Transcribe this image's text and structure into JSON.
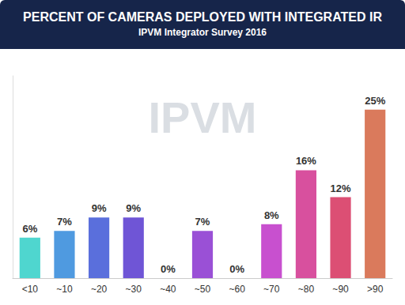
{
  "chart_data": {
    "type": "bar",
    "title": "PERCENT OF CAMERAS DEPLOYED WITH INTEGRATED IR",
    "subtitle": "IPVM Integrator Survey 2016",
    "annotations": [
      "IPVM"
    ],
    "categories": [
      "<10",
      "~10",
      "~20",
      "~30",
      "~40",
      "~50",
      "~60",
      "~70",
      "~80",
      "~90",
      ">90"
    ],
    "values": [
      6,
      7,
      9,
      9,
      0,
      7,
      0,
      8,
      16,
      12,
      25
    ],
    "value_labels": [
      "6%",
      "7%",
      "9%",
      "9%",
      "0%",
      "7%",
      "0%",
      "8%",
      "16%",
      "12%",
      "25%"
    ],
    "colors": [
      "#4fd6cf",
      "#4f9ae0",
      "#5a6fdc",
      "#6f55d6",
      "#8150d4",
      "#9a50d6",
      "#b450d6",
      "#c850cf",
      "#d8509e",
      "#dc4f74",
      "#da7a5c"
    ],
    "ylim": [
      0,
      30
    ],
    "data_labels": true,
    "tick_labels": "x",
    "grid": false
  }
}
